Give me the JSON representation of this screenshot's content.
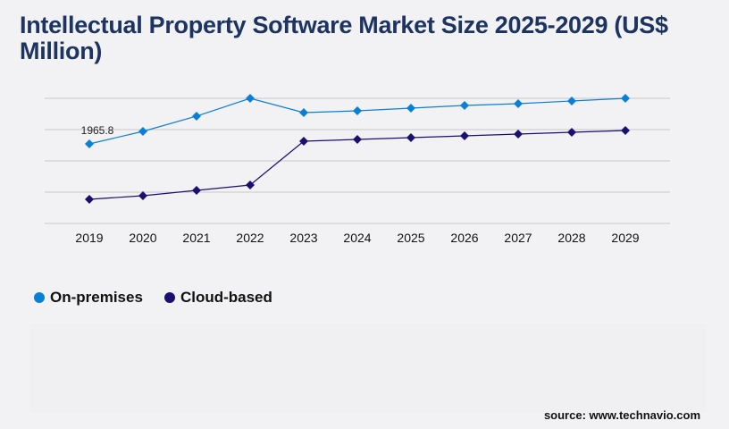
{
  "chart_data": {
    "type": "line",
    "title": "Intellectual Property Software Market Size 2025-2029 (US$ Million)",
    "categories": [
      "2019",
      "2020",
      "2021",
      "2022",
      "2023",
      "2024",
      "2025",
      "2026",
      "2027",
      "2028",
      "2029"
    ],
    "series": [
      {
        "name": "On-premises",
        "color": "#0a7fd6",
        "values": [
          1965.8,
          2275,
          2651,
          3092,
          2739,
          2783,
          2849,
          2916,
          2960,
          3026,
          3092
        ]
      },
      {
        "name": "Cloud-based",
        "color": "#1a1070",
        "values": [
          596,
          685,
          817,
          950,
          2032,
          2076,
          2121,
          2165,
          2209,
          2253,
          2297
        ]
      }
    ],
    "data_labels": [
      {
        "series": 0,
        "index": 0,
        "text": "1965.8"
      }
    ],
    "ylim": [
      0,
      3092
    ],
    "grid": true,
    "y_tick_labels_shown": false,
    "legend_position": "bottom-left",
    "marker": "diamond"
  },
  "legend": {
    "items": [
      "On-premises",
      "Cloud-based"
    ]
  },
  "source": "source: www.technavio.com"
}
